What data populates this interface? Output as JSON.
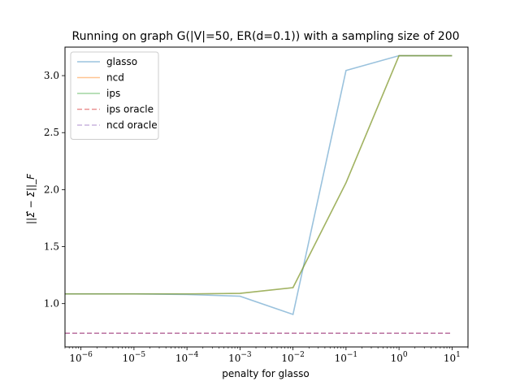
{
  "chart_data": {
    "type": "line",
    "title": "Running on graph G(|V|=50, ER(d=0.1)) with a sampling size of 200",
    "xlabel": "penalty for glasso",
    "ylabel": "||Σ̂ − Σ||_F",
    "xscale": "log",
    "xlim": [
      5e-07,
      20
    ],
    "ylim": [
      0.62,
      3.25
    ],
    "grid": false,
    "legend_position": "top-left",
    "x": [
      5e-07,
      1e-06,
      1e-05,
      0.0001,
      0.001,
      0.01,
      0.1,
      1,
      10
    ],
    "xticks": [
      {
        "value": 1e-06,
        "base": "10",
        "exp": "−6"
      },
      {
        "value": 1e-05,
        "base": "10",
        "exp": "−5"
      },
      {
        "value": 0.0001,
        "base": "10",
        "exp": "−4"
      },
      {
        "value": 0.001,
        "base": "10",
        "exp": "−3"
      },
      {
        "value": 0.01,
        "base": "10",
        "exp": "−2"
      },
      {
        "value": 0.1,
        "base": "10",
        "exp": "−1"
      },
      {
        "value": 1,
        "base": "10",
        "exp": "0"
      },
      {
        "value": 10,
        "base": "10",
        "exp": "1"
      }
    ],
    "yticks": [
      1.0,
      1.5,
      2.0,
      2.5,
      3.0
    ],
    "ytick_labels": [
      "1.0",
      "1.5",
      "2.0",
      "2.5",
      "3.0"
    ],
    "series": [
      {
        "name": "glasso",
        "color": "#1f77b4",
        "style": "solid",
        "opacity": 0.45,
        "values": [
          1.085,
          1.085,
          1.085,
          1.08,
          1.065,
          0.905,
          3.045,
          3.175,
          3.175
        ]
      },
      {
        "name": "ncd",
        "color": "#ff7f0e",
        "style": "solid",
        "opacity": 0.45,
        "values": [
          1.085,
          1.085,
          1.085,
          1.085,
          1.09,
          1.14,
          2.06,
          3.175,
          3.175
        ]
      },
      {
        "name": "ips",
        "color": "#2ca02c",
        "style": "solid",
        "opacity": 0.45,
        "values": [
          1.085,
          1.085,
          1.085,
          1.085,
          1.09,
          1.14,
          2.06,
          3.175,
          3.175
        ]
      },
      {
        "name": "ips oracle",
        "color": "#d62728",
        "style": "dashed",
        "opacity": 0.5,
        "values": [
          0.74,
          0.74,
          0.74,
          0.74,
          0.74,
          0.74,
          0.74,
          0.74,
          0.74
        ]
      },
      {
        "name": "ncd oracle",
        "color": "#9467bd",
        "style": "dashed",
        "opacity": 0.5,
        "values": [
          0.74,
          0.74,
          0.74,
          0.74,
          0.74,
          0.74,
          0.74,
          0.74,
          0.74
        ]
      }
    ]
  }
}
